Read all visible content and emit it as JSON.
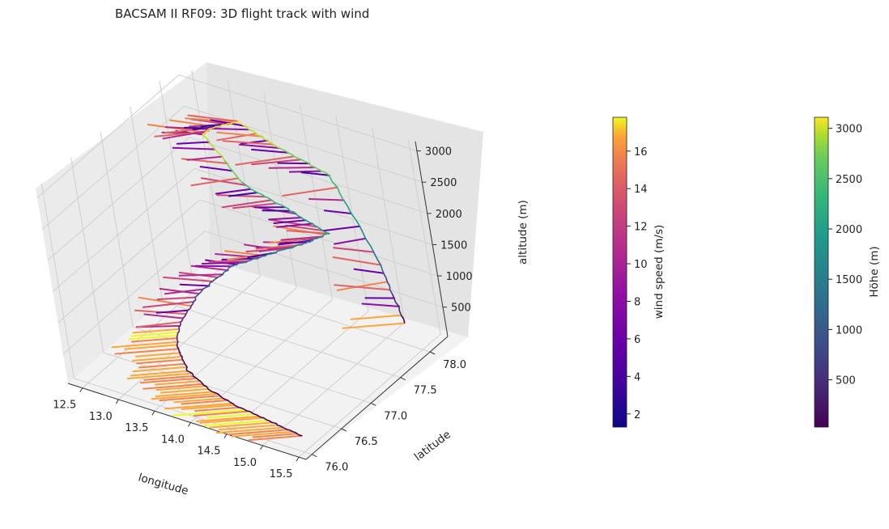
{
  "chart_data": {
    "type": "line",
    "title": "BACSAM II RF09: 3D flight track with wind",
    "projection": "3d",
    "axes": {
      "x": {
        "label": "longitude",
        "ticks": [
          "12.5",
          "13.0",
          "13.5",
          "14.0",
          "14.5",
          "15.0",
          "15.5"
        ],
        "range": [
          12.3,
          15.6
        ]
      },
      "y": {
        "label": "latitude",
        "ticks": [
          "76.0",
          "76.5",
          "77.0",
          "77.5",
          "78.0"
        ],
        "range": [
          75.9,
          78.3
        ]
      },
      "z": {
        "label": "altitude (m)",
        "ticks": [
          "500",
          "1000",
          "1500",
          "2000",
          "2500",
          "3000"
        ],
        "range": [
          30,
          3150
        ]
      }
    },
    "grid": true,
    "series": [
      {
        "kind": "flight track",
        "colored_by": "altitude",
        "lon": [
          15.3,
          14.8,
          14.3,
          13.85,
          13.45,
          13.1,
          12.95,
          13.05,
          13.4,
          13.9,
          14.3,
          14.5,
          14.1,
          13.6,
          13.2,
          13.25,
          13.45,
          13.85,
          14.4,
          14.9,
          15.05
        ],
        "lat": [
          76.2,
          76.25,
          76.3,
          76.4,
          76.55,
          76.8,
          77.05,
          77.3,
          77.5,
          77.6,
          77.75,
          77.9,
          77.8,
          77.7,
          77.6,
          77.7,
          77.9,
          78.05,
          78.15,
          78.2,
          78.25
        ],
        "alt": [
          50,
          70,
          90,
          100,
          120,
          200,
          300,
          600,
          1000,
          1300,
          1500,
          1600,
          1900,
          2200,
          2950,
          3000,
          3000,
          2600,
          2300,
          1000,
          80
        ]
      },
      {
        "kind": "wind barbs",
        "colored_by": "wind speed (m/s)",
        "range_ms": [
          1.3,
          17.8
        ],
        "note": "horizontal wind segments along track, strongest near the low-level leg"
      }
    ],
    "colorbars": [
      {
        "label": "wind speed (m/s)",
        "colormap": "plasma",
        "ticks": [
          "2",
          "4",
          "6",
          "8",
          "10",
          "12",
          "14",
          "16"
        ],
        "range": [
          1.3,
          17.8
        ]
      },
      {
        "label": "Höhe (m)",
        "colormap": "viridis",
        "ticks": [
          "500",
          "1000",
          "1500",
          "2000",
          "2500",
          "3000"
        ],
        "range": [
          30,
          3110
        ]
      }
    ]
  }
}
